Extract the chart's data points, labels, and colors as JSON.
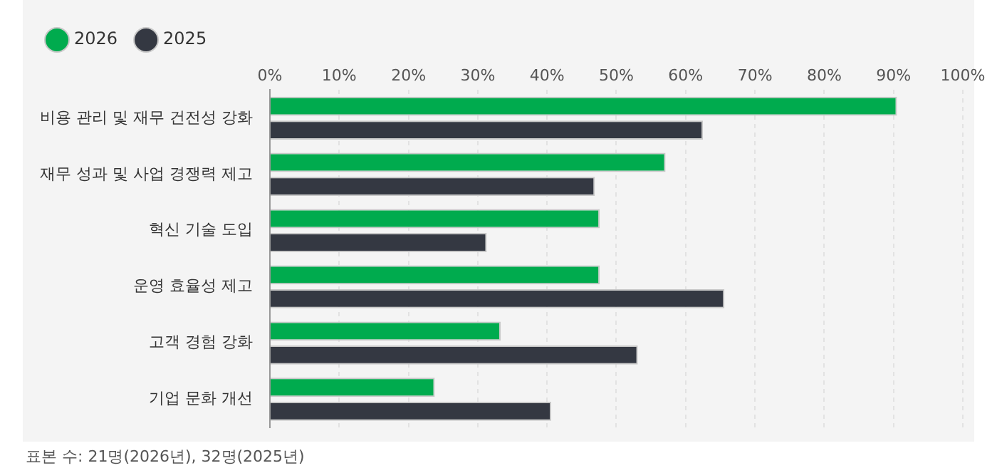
{
  "chart_data": {
    "type": "bar",
    "orientation": "horizontal",
    "categories": [
      "비용 관리 및 재무 건전성 강화",
      "재무 성과 및 사업 경쟁력 제고",
      "혁신 기술 도입",
      "운영 효율성 제고",
      "고객 경험 강화",
      "기업 문화 개선"
    ],
    "series": [
      {
        "name": "2026",
        "color": "#00ab4e",
        "values": [
          90.5,
          57.1,
          47.6,
          47.6,
          33.3,
          23.8
        ]
      },
      {
        "name": "2025",
        "color": "#343842",
        "values": [
          62.5,
          46.9,
          31.3,
          65.6,
          53.1,
          40.6
        ]
      }
    ],
    "xlim": [
      0,
      100
    ],
    "xticks": [
      {
        "value": 0,
        "label": "0%"
      },
      {
        "value": 10,
        "label": "10%"
      },
      {
        "value": 20,
        "label": "20%"
      },
      {
        "value": 30,
        "label": "30%"
      },
      {
        "value": 40,
        "label": "40%"
      },
      {
        "value": 50,
        "label": "50%"
      },
      {
        "value": 60,
        "label": "60%"
      },
      {
        "value": 70,
        "label": "70%"
      },
      {
        "value": 80,
        "label": "80%"
      },
      {
        "value": 90,
        "label": "90%"
      },
      {
        "value": 100,
        "label": "100%"
      }
    ],
    "grid": "x",
    "legend": "top left",
    "annotations": [
      "표본 수: 21명(2026년), 32명(2025년)"
    ]
  }
}
